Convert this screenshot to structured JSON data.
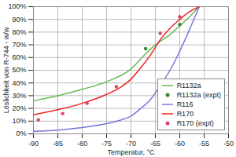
{
  "chart_data": {
    "type": "line",
    "x_label": "Temperatur, °C",
    "y_label": "Löslichkeit von R-744 - w/w",
    "xlim": [
      -90,
      -50
    ],
    "xticks": [
      -90,
      -85,
      -80,
      -75,
      -70,
      -65,
      -60,
      -55,
      -50
    ],
    "ylim": [
      0,
      100
    ],
    "yticks": [
      {
        "value": 0,
        "label": "0%"
      },
      {
        "value": 10,
        "label": "10%"
      },
      {
        "value": 20,
        "label": "20%"
      },
      {
        "value": 30,
        "label": "30%"
      },
      {
        "value": 40,
        "label": "40%"
      },
      {
        "value": 50,
        "label": "50%"
      },
      {
        "value": 60,
        "label": "60%"
      },
      {
        "value": 70,
        "label": "70%"
      },
      {
        "value": 80,
        "label": "80%"
      },
      {
        "value": 90,
        "label": "90%"
      },
      {
        "value": 100,
        "label": "100%"
      }
    ],
    "grid": true,
    "legend": "lower right",
    "series": [
      {
        "name": "R1132a",
        "type": "line",
        "color": "#66bb55",
        "x": [
          -90,
          -85,
          -80,
          -75,
          -70,
          -67,
          -65,
          -62,
          -60,
          -58,
          -56
        ],
        "values": [
          26,
          30,
          35,
          41,
          51,
          63,
          70,
          78,
          85,
          92,
          100
        ]
      },
      {
        "name": "R1132a (expt)",
        "type": "scatter",
        "marker": "circle",
        "color": "#2e8b2e",
        "x": [
          -67,
          -60
        ],
        "values": [
          67,
          86
        ]
      },
      {
        "name": "R116",
        "type": "line",
        "color": "#7777dd",
        "x": [
          -90,
          -85,
          -80,
          -75,
          -72,
          -70,
          -68,
          -66,
          -64,
          -62,
          -60,
          -58,
          -56
        ],
        "values": [
          2,
          3,
          5,
          8,
          11,
          14,
          20,
          27,
          38,
          50,
          65,
          82,
          100
        ]
      },
      {
        "name": "R170",
        "type": "line",
        "color": "#ee2222",
        "x": [
          -90,
          -85,
          -80,
          -75,
          -72,
          -70,
          -68,
          -66,
          -64,
          -62,
          -60,
          -58,
          -56
        ],
        "values": [
          15,
          19,
          24,
          31,
          37,
          43,
          52,
          62,
          74,
          83,
          90,
          96,
          100
        ]
      },
      {
        "name": "R170 (expt)",
        "type": "scatter",
        "marker": "circle",
        "color": "#dd4466",
        "x": [
          -89,
          -84,
          -79,
          -73,
          -64,
          -60
        ],
        "values": [
          11,
          16,
          24,
          37,
          79,
          92
        ]
      }
    ]
  }
}
